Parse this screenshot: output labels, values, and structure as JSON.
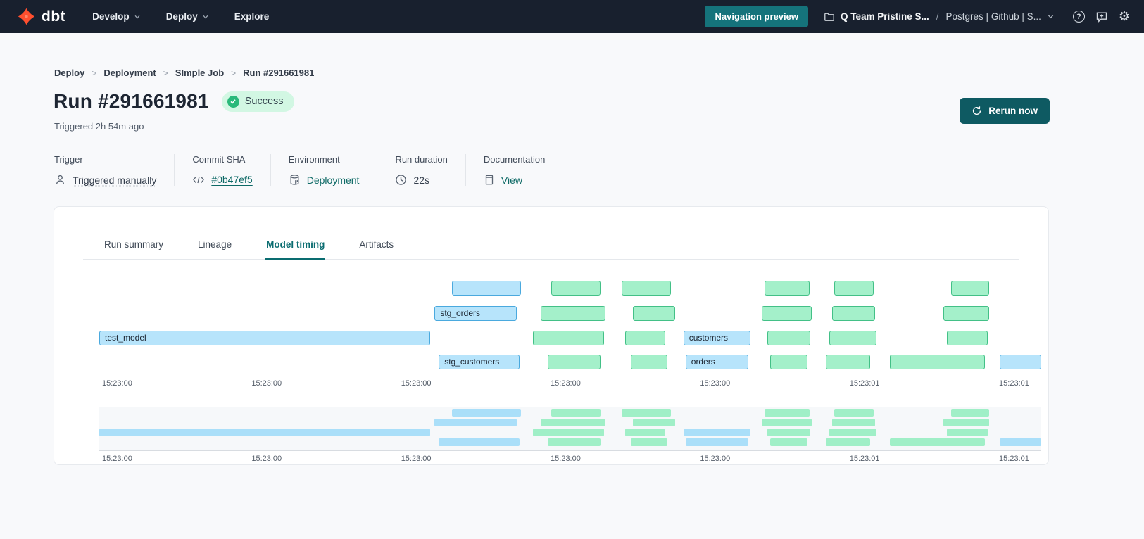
{
  "header": {
    "logo_text": "dbt",
    "nav": [
      {
        "label": "Develop",
        "chevron": true
      },
      {
        "label": "Deploy",
        "chevron": true
      },
      {
        "label": "Explore",
        "chevron": false
      }
    ],
    "preview_button": "Navigation preview",
    "project": "Q Team Pristine S...",
    "separator": "/",
    "environment": "Postgres | Github | S...",
    "icons": [
      "help-icon",
      "feedback-icon",
      "settings-icon"
    ]
  },
  "breadcrumb": {
    "separator": ">",
    "items": [
      "Deploy",
      "Deployment",
      "SImple Job",
      "Run #291661981"
    ]
  },
  "run": {
    "title": "Run #291661981",
    "status": "Success",
    "triggered": "Triggered 2h 54m ago",
    "rerun_label": "Rerun now"
  },
  "meta": {
    "items": [
      {
        "label": "Trigger",
        "value": "Triggered manually",
        "icon": "user-icon",
        "link": false,
        "dotted": true
      },
      {
        "label": "Commit SHA",
        "value": "#0b47ef5",
        "icon": "code-icon",
        "link": true,
        "dotted": false
      },
      {
        "label": "Environment",
        "value": "Deployment",
        "icon": "database-icon",
        "link": true,
        "dotted": false
      },
      {
        "label": "Run duration",
        "value": "22s",
        "icon": "clock-icon",
        "link": false,
        "dotted": false
      },
      {
        "label": "Documentation",
        "value": "View",
        "icon": "document-icon",
        "link": true,
        "dotted": false
      }
    ]
  },
  "tabs": {
    "items": [
      "Run summary",
      "Lineage",
      "Model timing",
      "Artifacts"
    ],
    "active": "Model timing"
  },
  "chart_data": {
    "type": "gantt",
    "title": "Model timing",
    "has_overview_strip": true,
    "colors": {
      "blue_fill": "#b7e4fb",
      "blue_border": "#4aa9de",
      "green_fill": "#a4f0ca",
      "green_border": "#43c087",
      "blue_mini": "#aadff9",
      "green_mini": "#a0efc7"
    },
    "axis_ticks": [
      {
        "label": "15:23:00",
        "pct": 0.3
      },
      {
        "label": "15:23:00",
        "pct": 16.17
      },
      {
        "label": "15:23:00",
        "pct": 32.04
      },
      {
        "label": "15:23:00",
        "pct": 47.91
      },
      {
        "label": "15:23:00",
        "pct": 63.78
      },
      {
        "label": "15:23:01",
        "pct": 79.65
      },
      {
        "label": "15:23:01",
        "pct": 95.52
      }
    ],
    "rows": [
      {
        "bars": [
          {
            "label": "",
            "color": "blue",
            "left_pct": 37.46,
            "width_pct": 7.31
          },
          {
            "label": "",
            "color": "green",
            "left_pct": 47.99,
            "width_pct": 5.22
          },
          {
            "label": "",
            "color": "green",
            "left_pct": 55.45,
            "width_pct": 5.22
          },
          {
            "label": "",
            "color": "green",
            "left_pct": 70.6,
            "width_pct": 4.78
          },
          {
            "label": "",
            "color": "green",
            "left_pct": 78.06,
            "width_pct": 4.18
          },
          {
            "label": "",
            "color": "green",
            "left_pct": 90.45,
            "width_pct": 4.03
          }
        ]
      },
      {
        "bars": [
          {
            "label": "stg_orders",
            "color": "blue",
            "left_pct": 35.6,
            "width_pct": 8.73
          },
          {
            "label": "",
            "color": "green",
            "left_pct": 46.87,
            "width_pct": 6.87
          },
          {
            "label": "",
            "color": "green",
            "left_pct": 56.64,
            "width_pct": 4.48
          },
          {
            "label": "",
            "color": "green",
            "left_pct": 70.3,
            "width_pct": 5.3
          },
          {
            "label": "",
            "color": "green",
            "left_pct": 77.84,
            "width_pct": 4.55
          },
          {
            "label": "",
            "color": "green",
            "left_pct": 89.63,
            "width_pct": 4.85
          }
        ]
      },
      {
        "bars": [
          {
            "label": "test_model",
            "color": "blue",
            "left_pct": 0.0,
            "width_pct": 35.15
          },
          {
            "label": "",
            "color": "green",
            "left_pct": 46.04,
            "width_pct": 7.54
          },
          {
            "label": "",
            "color": "green",
            "left_pct": 55.82,
            "width_pct": 4.25
          },
          {
            "label": "customers",
            "color": "blue",
            "left_pct": 62.01,
            "width_pct": 7.09
          },
          {
            "label": "",
            "color": "green",
            "left_pct": 70.9,
            "width_pct": 4.55
          },
          {
            "label": "",
            "color": "green",
            "left_pct": 77.54,
            "width_pct": 5.0
          },
          {
            "label": "",
            "color": "green",
            "left_pct": 90.0,
            "width_pct": 4.33
          }
        ]
      },
      {
        "bars": [
          {
            "label": "stg_customers",
            "color": "blue",
            "left_pct": 36.04,
            "width_pct": 8.58
          },
          {
            "label": "",
            "color": "green",
            "left_pct": 47.61,
            "width_pct": 5.6
          },
          {
            "label": "",
            "color": "green",
            "left_pct": 56.42,
            "width_pct": 3.88
          },
          {
            "label": "orders",
            "color": "blue",
            "left_pct": 62.24,
            "width_pct": 6.64
          },
          {
            "label": "",
            "color": "green",
            "left_pct": 71.19,
            "width_pct": 3.96
          },
          {
            "label": "",
            "color": "green",
            "left_pct": 77.16,
            "width_pct": 4.7
          },
          {
            "label": "",
            "color": "green",
            "left_pct": 83.96,
            "width_pct": 10.07
          },
          {
            "label": "",
            "color": "blue",
            "left_pct": 95.6,
            "width_pct": 4.4
          }
        ]
      }
    ]
  }
}
